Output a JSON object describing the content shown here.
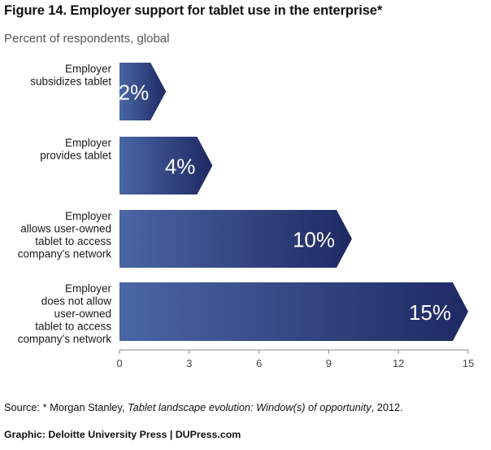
{
  "title": "Figure 14. Employer support for tablet use in the enterprise*",
  "subtitle": "Percent of respondents, global",
  "chart_data": {
    "type": "bar",
    "orientation": "horizontal",
    "categories": [
      [
        "Employer",
        "subsidizes tablet"
      ],
      [
        "Employer",
        "provides tablet"
      ],
      [
        "Employer",
        "allows user-owned",
        "tablet to access",
        "company’s network"
      ],
      [
        "Employer",
        "does not allow",
        "user-owned",
        "tablet to access",
        "company’s network"
      ]
    ],
    "values": [
      2,
      4,
      10,
      15
    ],
    "value_labels": [
      "2%",
      "4%",
      "10%",
      "15%"
    ],
    "xlim": [
      0,
      15
    ],
    "xticks": [
      "0",
      "3",
      "6",
      "9",
      "12",
      "15"
    ],
    "grid": false,
    "colors": {
      "bar_dark": "#1f2a63",
      "bar_light": "#4a66a4",
      "label": "#ffffff"
    }
  },
  "source": {
    "prefix": "Source: * Morgan Stanley, ",
    "italic": "Tablet landscape evolution: Window(s) of opportunity",
    "suffix": ", 2012."
  },
  "credit": "Graphic: Deloitte University Press  |  DUPress.com"
}
